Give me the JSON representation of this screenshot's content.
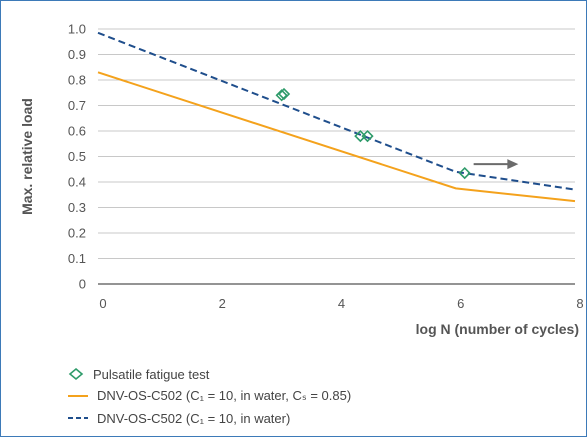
{
  "chart_data": {
    "type": "line",
    "xlabel": "log N (number of cycles)",
    "ylabel": "Max. relative load",
    "xlim": [
      0,
      8
    ],
    "ylim": [
      0,
      1.0
    ],
    "x_ticks": [
      "0",
      "2",
      "4",
      "6",
      "8"
    ],
    "y_ticks": [
      "0",
      "0.1",
      "0.2",
      "0.3",
      "0.4",
      "0.5",
      "0.6",
      "0.7",
      "0.8",
      "0.9",
      "1.0"
    ],
    "grid": "horizontal",
    "series": [
      {
        "name": "DNV-OS-C502 (C₁ = 10, in water, Cₛ = 0.85)",
        "style": "solid",
        "color": "#f4a21c",
        "x": [
          0,
          6,
          8
        ],
        "y": [
          0.83,
          0.375,
          0.325
        ]
      },
      {
        "name": "DNV-OS-C502 (C₁ = 10, in water)",
        "style": "dashed",
        "color": "#1f4e8c",
        "x": [
          0,
          6,
          8
        ],
        "y": [
          0.985,
          0.44,
          0.37
        ]
      },
      {
        "name": "Pulsatile fatigue test",
        "style": "markers",
        "marker": "diamond",
        "color": "#2e9b6a",
        "x": [
          3.08,
          3.12,
          4.4,
          4.52,
          6.15
        ],
        "y": [
          0.74,
          0.745,
          0.58,
          0.58,
          0.435
        ]
      }
    ],
    "annotations": [
      {
        "type": "arrow",
        "from_x": 6.3,
        "to_x": 7.05,
        "y": 0.47,
        "color": "#6b6b6b"
      }
    ]
  },
  "legend": {
    "items": [
      {
        "label": "Pulsatile fatigue test",
        "key": "diamond",
        "color": "#2e9b6a"
      },
      {
        "label": "DNV-OS-C502 (C₁ = 10, in water, Cₛ = 0.85)",
        "key": "solid",
        "color": "#f4a21c"
      },
      {
        "label": "DNV-OS-C502 (C₁ = 10, in water)",
        "key": "dashed",
        "color": "#1f4e8c"
      }
    ]
  }
}
